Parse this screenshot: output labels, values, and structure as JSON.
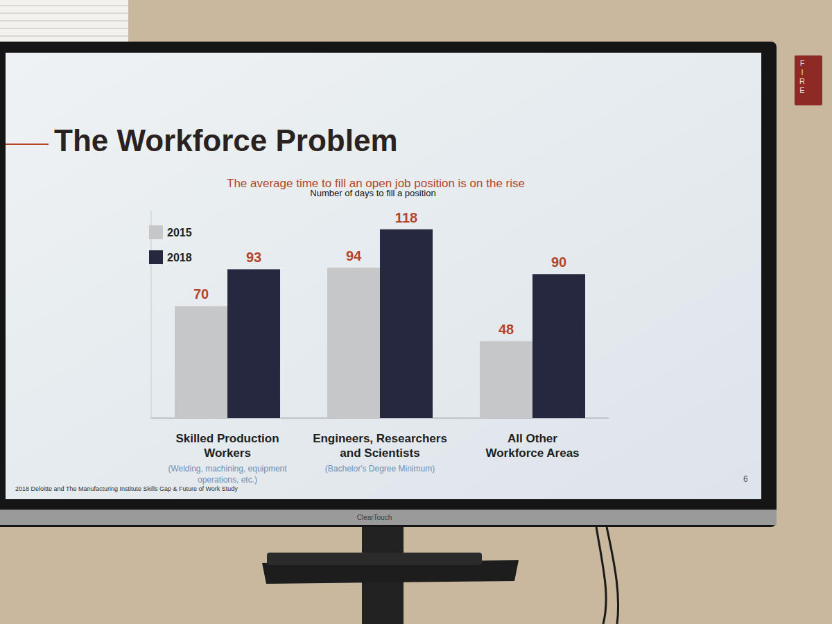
{
  "chart_data": {
    "type": "bar",
    "title": "The Workforce Problem",
    "subtitle": "The average time to fill an open job position is on the rise",
    "y_label": "Number of days to fill a position",
    "categories": [
      "Skilled Production Workers",
      "Engineers, Researchers and Scientists",
      "All Other Workforce Areas"
    ],
    "category_notes": [
      "(Welding, machining, equipment operations, etc.)",
      "(Bachelor's Degree Minimum)",
      null
    ],
    "series": [
      {
        "name": "2015",
        "color": "#c6c7c9",
        "values": [
          70,
          94,
          48
        ]
      },
      {
        "name": "2018",
        "color": "#26283f",
        "values": [
          93,
          118,
          90
        ]
      }
    ],
    "ylim": [
      0,
      130
    ],
    "yticks": [],
    "grid": false,
    "legend": "top-left",
    "data_labels": true,
    "tick_labels": false,
    "source": "2018 Deloitte and The Manufacturing Institute Skills Gap & Future of Work Study",
    "page_number": "6",
    "annotations": [
      "ClearTouch",
      "FIRE"
    ]
  }
}
